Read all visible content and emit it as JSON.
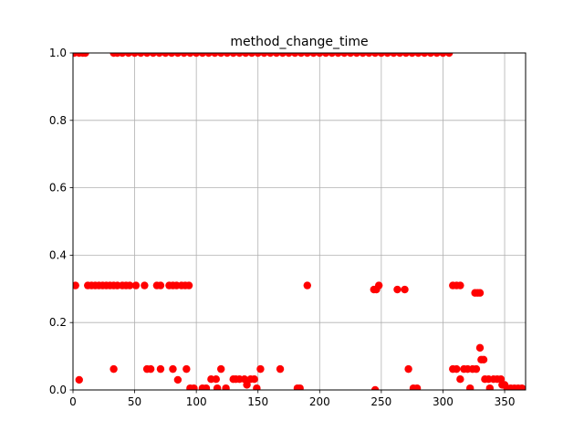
{
  "chart_data": {
    "type": "scatter",
    "title": "method_change_time",
    "xlabel": "",
    "ylabel": "",
    "xlim": [
      0,
      367
    ],
    "ylim": [
      0,
      1.0
    ],
    "x_ticks": [
      0,
      50,
      100,
      150,
      200,
      250,
      300,
      350
    ],
    "x_tick_labels": [
      "0",
      "50",
      "100",
      "150",
      "200",
      "250",
      "300",
      "350"
    ],
    "y_ticks": [
      0.0,
      0.2,
      0.4,
      0.6,
      0.8,
      1.0
    ],
    "y_tick_labels": [
      "0.0",
      "0.2",
      "0.4",
      "0.6",
      "0.8",
      "1.0"
    ],
    "grid": true,
    "marker_color": "#ff0000",
    "series": [
      {
        "points": [
          [
            1,
            1.0
          ],
          [
            5,
            1.0
          ],
          [
            8,
            1.0
          ],
          [
            10,
            1.0
          ],
          [
            33,
            1.0
          ],
          [
            36,
            1.0
          ],
          [
            40,
            1.0
          ],
          [
            45,
            1.0
          ],
          [
            50,
            1.0
          ],
          [
            55,
            1.0
          ],
          [
            60,
            1.0
          ],
          [
            65,
            1.0
          ],
          [
            70,
            1.0
          ],
          [
            75,
            1.0
          ],
          [
            80,
            1.0
          ],
          [
            85,
            1.0
          ],
          [
            90,
            1.0
          ],
          [
            95,
            1.0
          ],
          [
            100,
            1.0
          ],
          [
            105,
            1.0
          ],
          [
            110,
            1.0
          ],
          [
            115,
            1.0
          ],
          [
            120,
            1.0
          ],
          [
            125,
            1.0
          ],
          [
            130,
            1.0
          ],
          [
            135,
            1.0
          ],
          [
            140,
            1.0
          ],
          [
            145,
            1.0
          ],
          [
            150,
            1.0
          ],
          [
            155,
            1.0
          ],
          [
            160,
            1.0
          ],
          [
            165,
            1.0
          ],
          [
            170,
            1.0
          ],
          [
            175,
            1.0
          ],
          [
            180,
            1.0
          ],
          [
            185,
            1.0
          ],
          [
            190,
            1.0
          ],
          [
            195,
            1.0
          ],
          [
            200,
            1.0
          ],
          [
            205,
            1.0
          ],
          [
            210,
            1.0
          ],
          [
            215,
            1.0
          ],
          [
            220,
            1.0
          ],
          [
            225,
            1.0
          ],
          [
            230,
            1.0
          ],
          [
            235,
            1.0
          ],
          [
            240,
            1.0
          ],
          [
            245,
            1.0
          ],
          [
            250,
            1.0
          ],
          [
            255,
            1.0
          ],
          [
            260,
            1.0
          ],
          [
            265,
            1.0
          ],
          [
            270,
            1.0
          ],
          [
            275,
            1.0
          ],
          [
            280,
            1.0
          ],
          [
            285,
            1.0
          ],
          [
            290,
            1.0
          ],
          [
            295,
            1.0
          ],
          [
            300,
            1.0
          ],
          [
            305,
            1.0
          ],
          [
            2,
            0.31
          ],
          [
            12,
            0.31
          ],
          [
            15,
            0.31
          ],
          [
            18,
            0.31
          ],
          [
            21,
            0.31
          ],
          [
            24,
            0.31
          ],
          [
            27,
            0.31
          ],
          [
            30,
            0.31
          ],
          [
            33,
            0.31
          ],
          [
            36,
            0.31
          ],
          [
            40,
            0.31
          ],
          [
            43,
            0.31
          ],
          [
            46,
            0.31
          ],
          [
            51,
            0.31
          ],
          [
            58,
            0.31
          ],
          [
            68,
            0.31
          ],
          [
            71,
            0.31
          ],
          [
            78,
            0.31
          ],
          [
            81,
            0.31
          ],
          [
            84,
            0.31
          ],
          [
            88,
            0.31
          ],
          [
            91,
            0.31
          ],
          [
            94,
            0.31
          ],
          [
            190,
            0.31
          ],
          [
            244,
            0.298
          ],
          [
            246,
            0.298
          ],
          [
            248,
            0.31
          ],
          [
            263,
            0.298
          ],
          [
            269,
            0.298
          ],
          [
            308,
            0.31
          ],
          [
            311,
            0.31
          ],
          [
            314,
            0.31
          ],
          [
            326,
            0.288
          ],
          [
            328,
            0.288
          ],
          [
            330,
            0.288
          ],
          [
            5,
            0.03
          ],
          [
            33,
            0.062
          ],
          [
            60,
            0.062
          ],
          [
            63,
            0.062
          ],
          [
            71,
            0.062
          ],
          [
            81,
            0.062
          ],
          [
            85,
            0.03
          ],
          [
            92,
            0.062
          ],
          [
            95,
            0.005
          ],
          [
            98,
            0.005
          ],
          [
            105,
            0.005
          ],
          [
            108,
            0.005
          ],
          [
            112,
            0.032
          ],
          [
            116,
            0.032
          ],
          [
            117,
            0.005
          ],
          [
            120,
            0.062
          ],
          [
            124,
            0.005
          ],
          [
            130,
            0.032
          ],
          [
            132,
            0.032
          ],
          [
            135,
            0.032
          ],
          [
            139,
            0.032
          ],
          [
            141,
            0.015
          ],
          [
            144,
            0.032
          ],
          [
            147,
            0.032
          ],
          [
            149,
            0.005
          ],
          [
            152,
            0.062
          ],
          [
            168,
            0.062
          ],
          [
            182,
            0.005
          ],
          [
            184,
            0.005
          ],
          [
            245,
            0.0
          ],
          [
            272,
            0.062
          ],
          [
            276,
            0.005
          ],
          [
            279,
            0.005
          ],
          [
            308,
            0.062
          ],
          [
            311,
            0.062
          ],
          [
            314,
            0.032
          ],
          [
            317,
            0.062
          ],
          [
            320,
            0.062
          ],
          [
            322,
            0.005
          ],
          [
            324,
            0.062
          ],
          [
            327,
            0.062
          ],
          [
            330,
            0.125
          ],
          [
            331,
            0.09
          ],
          [
            333,
            0.09
          ],
          [
            334,
            0.032
          ],
          [
            337,
            0.032
          ],
          [
            338,
            0.005
          ],
          [
            341,
            0.032
          ],
          [
            344,
            0.032
          ],
          [
            347,
            0.032
          ],
          [
            348,
            0.015
          ],
          [
            350,
            0.015
          ],
          [
            352,
            0.005
          ],
          [
            355,
            0.005
          ],
          [
            358,
            0.005
          ],
          [
            361,
            0.005
          ],
          [
            364,
            0.005
          ],
          [
            366,
            0.0
          ]
        ]
      }
    ]
  }
}
